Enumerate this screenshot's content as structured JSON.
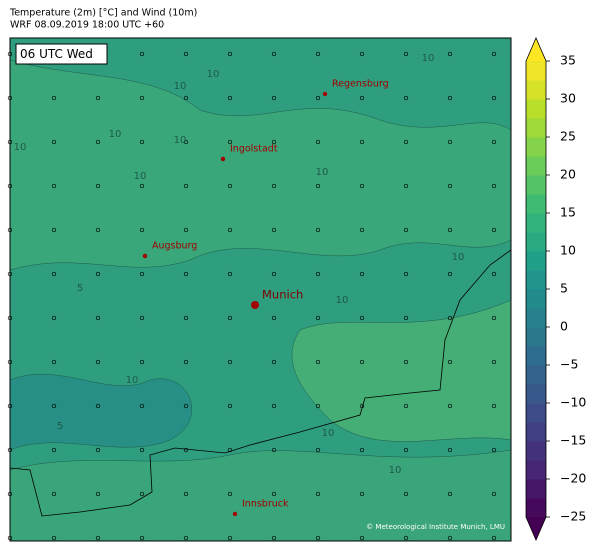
{
  "header": {
    "title": "Temperature (2m) [°C] and Wind (10m)",
    "subtitle": "WRF 08.09.2019 18:00 UTC +60"
  },
  "map": {
    "time_label": "06 UTC Wed",
    "cities": [
      "Regensburg",
      "Ingolstadt",
      "Augsburg",
      "Munich",
      "Innsbruck"
    ],
    "contour_labels": [
      "10",
      "10",
      "10",
      "10",
      "10",
      "10",
      "10",
      "10",
      "5",
      "5",
      "10",
      "10",
      "10",
      "10",
      "10"
    ],
    "credit": "© Meteorological Institute Munich, LMU"
  },
  "colorbar": {
    "lim": [
      -25,
      35
    ],
    "step": 2.5,
    "ticks": [
      {
        "value": -25,
        "label": "−25"
      },
      {
        "value": -20,
        "label": "−20"
      },
      {
        "value": -15,
        "label": "−15"
      },
      {
        "value": -10,
        "label": "−10"
      },
      {
        "value": -5,
        "label": "−5"
      },
      0,
      5,
      10,
      15,
      20,
      25,
      30,
      35
    ],
    "colormap": [
      "#440154",
      "#482878",
      "#3e4989",
      "#31688e",
      "#26828e",
      "#1f9e89",
      "#35b779",
      "#6ece58",
      "#b5de2b",
      "#fde725"
    ]
  }
}
